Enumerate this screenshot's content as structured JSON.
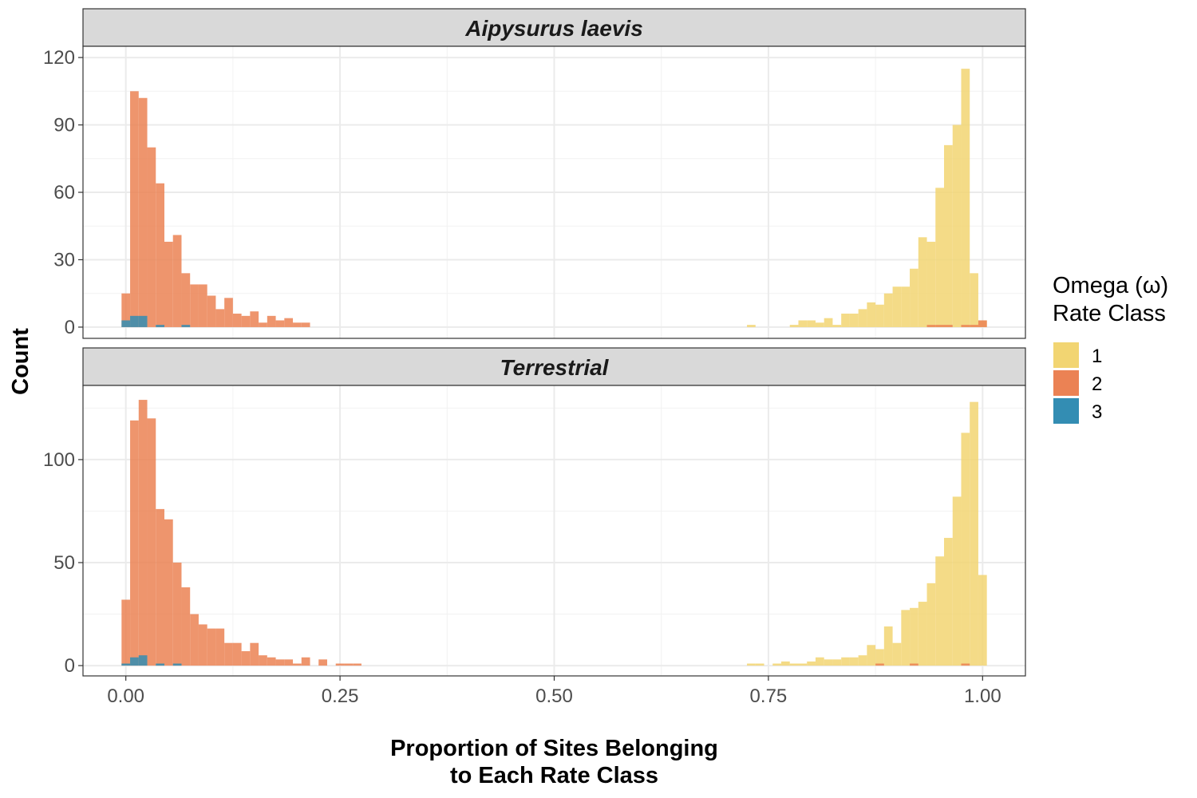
{
  "chart_data": {
    "type": "bar",
    "xlabel": "Proportion of Sites Belonging to Each Rate Class",
    "xlabel_lines": [
      "Proportion of Sites Belonging",
      "to Each Rate Class"
    ],
    "ylabel": "Count",
    "x_ticks": [
      0,
      0.25,
      0.5,
      0.75,
      1
    ],
    "x_tick_labels": [
      "0.00",
      "0.25",
      "0.50",
      "0.75",
      "1.00"
    ],
    "xlim": [
      -0.05,
      1.05
    ],
    "bin_width": 0.01,
    "grid": true,
    "legend": {
      "title_lines": [
        "Omega (ω)",
        "Rate Class"
      ],
      "position": "right",
      "entries": [
        {
          "label": "1",
          "color": "#F2D572"
        },
        {
          "label": "2",
          "color": "#EB8254"
        },
        {
          "label": "3",
          "color": "#338DB3"
        }
      ]
    },
    "panels": [
      {
        "title": "Aipysurus laevis",
        "ylim": [
          -5,
          125
        ],
        "y_ticks": [
          0,
          30,
          60,
          90,
          120
        ],
        "y_tick_labels": [
          "0",
          "30",
          "60",
          "90",
          "120"
        ],
        "series": [
          {
            "name": "1",
            "x": [
              0.73,
              0.78,
              0.79,
              0.8,
              0.81,
              0.82,
              0.83,
              0.84,
              0.85,
              0.86,
              0.87,
              0.88,
              0.89,
              0.9,
              0.91,
              0.92,
              0.93,
              0.94,
              0.95,
              0.96,
              0.97,
              0.98,
              0.99,
              1.0
            ],
            "y": [
              1,
              1,
              3,
              3,
              2,
              4,
              1,
              6,
              6,
              8,
              11,
              10,
              15,
              18,
              18,
              26,
              40,
              38,
              62,
              81,
              90,
              115,
              24,
              3
            ]
          },
          {
            "name": "2",
            "x": [
              0.0,
              0.01,
              0.02,
              0.03,
              0.04,
              0.05,
              0.06,
              0.07,
              0.08,
              0.09,
              0.1,
              0.11,
              0.12,
              0.13,
              0.14,
              0.15,
              0.16,
              0.17,
              0.18,
              0.19,
              0.2,
              0.21,
              0.94,
              0.95,
              0.96,
              0.98,
              0.99,
              1.0
            ],
            "y": [
              15,
              105,
              102,
              80,
              64,
              38,
              41,
              24,
              19,
              19,
              14,
              8,
              13,
              6,
              5,
              7,
              2,
              5,
              3,
              4,
              2,
              2,
              1,
              1,
              1,
              1,
              1,
              3
            ]
          },
          {
            "name": "3",
            "x": [
              0.0,
              0.01,
              0.02,
              0.04,
              0.07
            ],
            "y": [
              3,
              5,
              5,
              1,
              1
            ]
          }
        ]
      },
      {
        "title": "Terrestrial",
        "ylim": [
          -5,
          136
        ],
        "y_ticks": [
          0,
          50,
          100
        ],
        "y_tick_labels": [
          "0",
          "50",
          "100"
        ],
        "series": [
          {
            "name": "1",
            "x": [
              0.73,
              0.74,
              0.76,
              0.77,
              0.78,
              0.79,
              0.8,
              0.81,
              0.82,
              0.83,
              0.84,
              0.85,
              0.86,
              0.87,
              0.88,
              0.89,
              0.9,
              0.91,
              0.92,
              0.93,
              0.94,
              0.95,
              0.96,
              0.97,
              0.98,
              0.99,
              1.0
            ],
            "y": [
              1,
              1,
              1,
              2,
              1,
              1,
              2,
              4,
              3,
              3,
              4,
              4,
              5,
              10,
              8,
              19,
              11,
              27,
              28,
              31,
              40,
              53,
              62,
              82,
              113,
              128,
              44
            ]
          },
          {
            "name": "2",
            "x": [
              0.0,
              0.01,
              0.02,
              0.03,
              0.04,
              0.05,
              0.06,
              0.07,
              0.08,
              0.09,
              0.1,
              0.11,
              0.12,
              0.13,
              0.14,
              0.15,
              0.16,
              0.17,
              0.18,
              0.19,
              0.2,
              0.21,
              0.23,
              0.25,
              0.26,
              0.27,
              0.88,
              0.92,
              0.98
            ],
            "y": [
              32,
              119,
              129,
              120,
              76,
              71,
              50,
              38,
              25,
              20,
              18,
              18,
              11,
              11,
              7,
              11,
              5,
              4,
              3,
              3,
              1,
              4,
              3,
              1,
              1,
              1,
              1,
              1,
              1
            ]
          },
          {
            "name": "3",
            "x": [
              0.0,
              0.01,
              0.02,
              0.04,
              0.06
            ],
            "y": [
              1,
              4,
              5,
              1,
              1
            ]
          }
        ]
      }
    ]
  }
}
